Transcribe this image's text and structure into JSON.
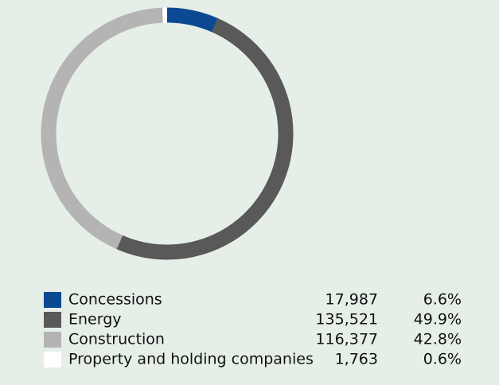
{
  "chart_data": {
    "type": "donut",
    "categories": [
      "Concessions",
      "Energy",
      "Construction",
      "Property and holding companies"
    ],
    "values": [
      6.6,
      49.9,
      42.8,
      0.6
    ],
    "value_labels": [
      "6.6%",
      "49.9%",
      "42.8%",
      "0.6%"
    ],
    "counts": [
      "17,987",
      "135,521",
      "116,377",
      "1,763"
    ],
    "colors": [
      "#0b4a93",
      "#595959",
      "#b4b4b4",
      "#ffffff"
    ]
  }
}
